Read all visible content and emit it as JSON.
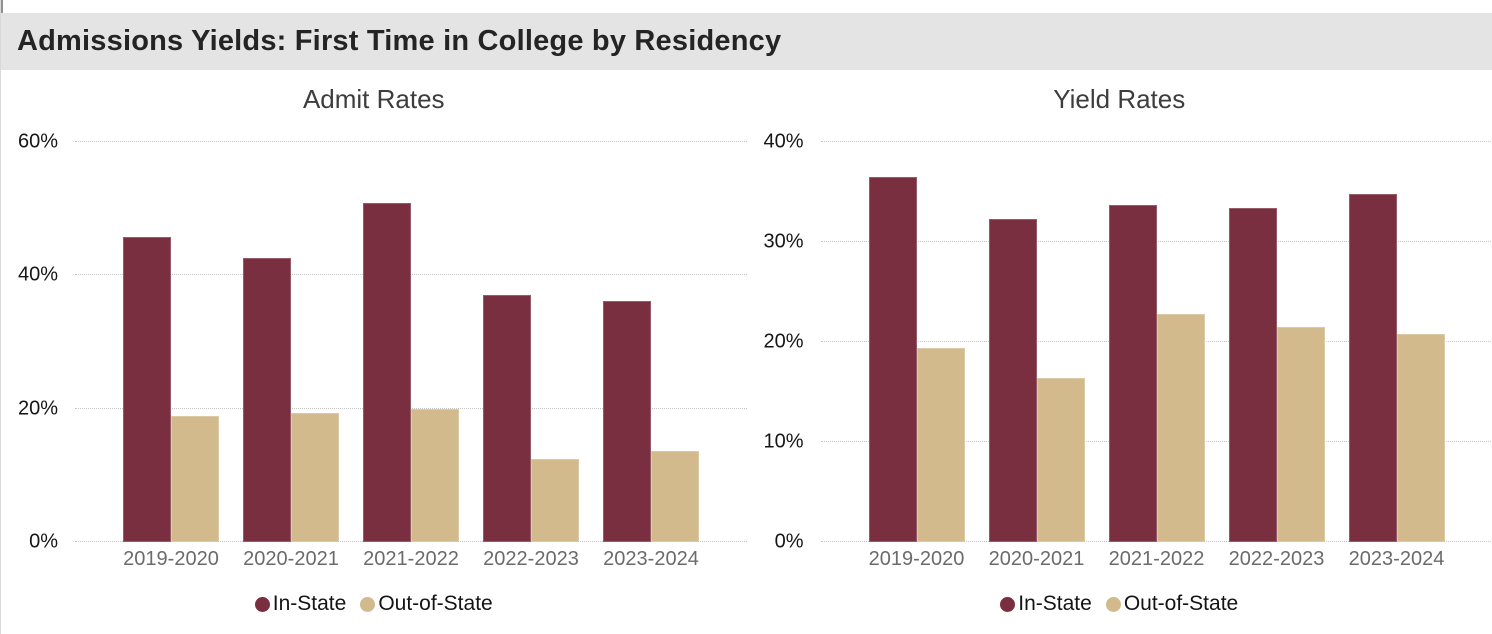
{
  "banner": {
    "title": "Admissions Yields: First Time in College by Residency"
  },
  "colors": {
    "in_state": "#7A2F41",
    "out_of_state": "#D2BA8C",
    "banner_bg": "#E4E4E4"
  },
  "chart_data": [
    {
      "type": "bar",
      "title": "Admit Rates",
      "categories": [
        "2019-2020",
        "2020-2021",
        "2021-2022",
        "2022-2023",
        "2023-2024"
      ],
      "series": [
        {
          "name": "In-State",
          "color_key": "in_state",
          "values": [
            45.7,
            42.6,
            50.9,
            37.1,
            36.1
          ]
        },
        {
          "name": "Out-of-State",
          "color_key": "out_of_state",
          "values": [
            18.9,
            19.3,
            19.9,
            12.4,
            13.7
          ]
        }
      ],
      "ylim": [
        0,
        60
      ],
      "yticks": [
        0,
        20,
        40,
        60
      ],
      "ytick_labels": [
        "0%",
        "20%",
        "40%",
        "60%"
      ],
      "grid": "dotted-horizontal",
      "legend_position": "bottom"
    },
    {
      "type": "bar",
      "title": "Yield Rates",
      "categories": [
        "2019-2020",
        "2020-2021",
        "2021-2022",
        "2022-2023",
        "2023-2024"
      ],
      "series": [
        {
          "name": "In-State",
          "color_key": "in_state",
          "values": [
            36.5,
            32.3,
            33.7,
            33.4,
            34.8
          ]
        },
        {
          "name": "Out-of-State",
          "color_key": "out_of_state",
          "values": [
            19.4,
            16.4,
            22.8,
            21.5,
            20.8
          ]
        }
      ],
      "ylim": [
        0,
        40
      ],
      "yticks": [
        0,
        10,
        20,
        30,
        40
      ],
      "ytick_labels": [
        "0%",
        "10%",
        "20%",
        "30%",
        "40%"
      ],
      "grid": "dotted-horizontal",
      "legend_position": "bottom"
    }
  ]
}
